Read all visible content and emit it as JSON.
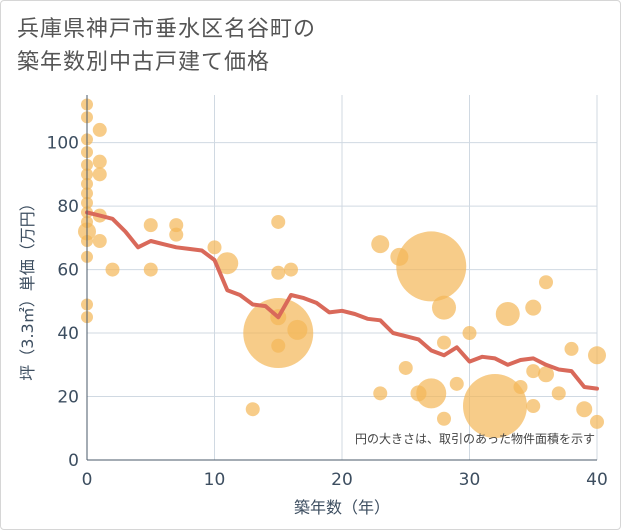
{
  "title_lines": [
    "兵庫県神戸市垂水区名谷町の",
    "築年数別中古戸建て価格"
  ],
  "chart_data": {
    "type": "scatter",
    "xlabel": "築年数（年）",
    "ylabel": "坪（3.3㎡）単価（万円）",
    "xlim": [
      0,
      40
    ],
    "ylim": [
      0,
      115
    ],
    "xticks": [
      0,
      10,
      20,
      30,
      40
    ],
    "yticks": [
      0,
      20,
      40,
      60,
      80,
      100
    ],
    "grid": true,
    "annotation": "円の大きさは、取引のあった物件面積を示す",
    "colors": {
      "bubble": "#f3b657",
      "line": "#d9695a",
      "grid": "#d0d9e2",
      "text": "#3d4e60"
    },
    "scatter_points": [
      {
        "x": 0,
        "y": 112,
        "s": 6
      },
      {
        "x": 0,
        "y": 108,
        "s": 6
      },
      {
        "x": 0,
        "y": 101,
        "s": 6
      },
      {
        "x": 0,
        "y": 97,
        "s": 6
      },
      {
        "x": 0,
        "y": 93,
        "s": 6
      },
      {
        "x": 0,
        "y": 90,
        "s": 6
      },
      {
        "x": 0,
        "y": 87,
        "s": 6
      },
      {
        "x": 0,
        "y": 84,
        "s": 6
      },
      {
        "x": 0,
        "y": 81,
        "s": 6
      },
      {
        "x": 0,
        "y": 78,
        "s": 6
      },
      {
        "x": 0,
        "y": 75,
        "s": 6
      },
      {
        "x": 0,
        "y": 72,
        "s": 9
      },
      {
        "x": 0,
        "y": 69,
        "s": 6
      },
      {
        "x": 0,
        "y": 64,
        "s": 6
      },
      {
        "x": 0,
        "y": 49,
        "s": 6
      },
      {
        "x": 0,
        "y": 45,
        "s": 6
      },
      {
        "x": 1,
        "y": 104,
        "s": 7
      },
      {
        "x": 1,
        "y": 94,
        "s": 7
      },
      {
        "x": 1,
        "y": 90,
        "s": 7
      },
      {
        "x": 1,
        "y": 77,
        "s": 7
      },
      {
        "x": 1,
        "y": 69,
        "s": 7
      },
      {
        "x": 2,
        "y": 60,
        "s": 7
      },
      {
        "x": 5,
        "y": 74,
        "s": 7
      },
      {
        "x": 5,
        "y": 60,
        "s": 7
      },
      {
        "x": 7,
        "y": 74,
        "s": 7
      },
      {
        "x": 7,
        "y": 71,
        "s": 7
      },
      {
        "x": 10,
        "y": 67,
        "s": 7
      },
      {
        "x": 11,
        "y": 62,
        "s": 11
      },
      {
        "x": 13,
        "y": 16,
        "s": 7
      },
      {
        "x": 15,
        "y": 75,
        "s": 7
      },
      {
        "x": 15,
        "y": 59,
        "s": 7
      },
      {
        "x": 15,
        "y": 45,
        "s": 8
      },
      {
        "x": 15,
        "y": 40,
        "s": 35
      },
      {
        "x": 15,
        "y": 36,
        "s": 7
      },
      {
        "x": 16,
        "y": 60,
        "s": 7
      },
      {
        "x": 16.5,
        "y": 41,
        "s": 10
      },
      {
        "x": 23,
        "y": 68,
        "s": 9
      },
      {
        "x": 23,
        "y": 21,
        "s": 7
      },
      {
        "x": 24.5,
        "y": 64,
        "s": 9
      },
      {
        "x": 25,
        "y": 29,
        "s": 7
      },
      {
        "x": 26,
        "y": 21,
        "s": 8
      },
      {
        "x": 27,
        "y": 61,
        "s": 35
      },
      {
        "x": 27,
        "y": 21,
        "s": 15
      },
      {
        "x": 28,
        "y": 48,
        "s": 12
      },
      {
        "x": 28,
        "y": 37,
        "s": 7
      },
      {
        "x": 28,
        "y": 13,
        "s": 7
      },
      {
        "x": 29,
        "y": 24,
        "s": 7
      },
      {
        "x": 30,
        "y": 40,
        "s": 7
      },
      {
        "x": 32,
        "y": 17,
        "s": 32
      },
      {
        "x": 33,
        "y": 46,
        "s": 12
      },
      {
        "x": 34,
        "y": 23,
        "s": 7
      },
      {
        "x": 35,
        "y": 48,
        "s": 8
      },
      {
        "x": 35,
        "y": 28,
        "s": 7
      },
      {
        "x": 35,
        "y": 17,
        "s": 7
      },
      {
        "x": 36,
        "y": 56,
        "s": 7
      },
      {
        "x": 36,
        "y": 27,
        "s": 8
      },
      {
        "x": 37,
        "y": 21,
        "s": 7
      },
      {
        "x": 38,
        "y": 35,
        "s": 7
      },
      {
        "x": 39,
        "y": 16,
        "s": 8
      },
      {
        "x": 40,
        "y": 33,
        "s": 9
      },
      {
        "x": 40,
        "y": 12,
        "s": 7
      }
    ],
    "trend_line": {
      "x": [
        0,
        1,
        2,
        3,
        4,
        5,
        6,
        7,
        8,
        9,
        10,
        11,
        12,
        13,
        14,
        15,
        16,
        17,
        18,
        19,
        20,
        21,
        22,
        23,
        24,
        25,
        26,
        27,
        28,
        29,
        30,
        31,
        32,
        33,
        34,
        35,
        36,
        37,
        38,
        39,
        40
      ],
      "y": [
        78,
        77,
        76,
        72,
        67,
        69,
        68,
        67,
        66.5,
        66,
        63,
        53.5,
        52,
        49,
        48.5,
        45,
        52,
        51,
        49.5,
        46.5,
        47,
        46,
        44.5,
        44,
        40,
        39,
        38,
        34.5,
        33,
        35.5,
        31,
        32.5,
        32,
        30,
        31.5,
        32,
        30,
        28.5,
        28,
        23,
        22.5
      ]
    }
  }
}
